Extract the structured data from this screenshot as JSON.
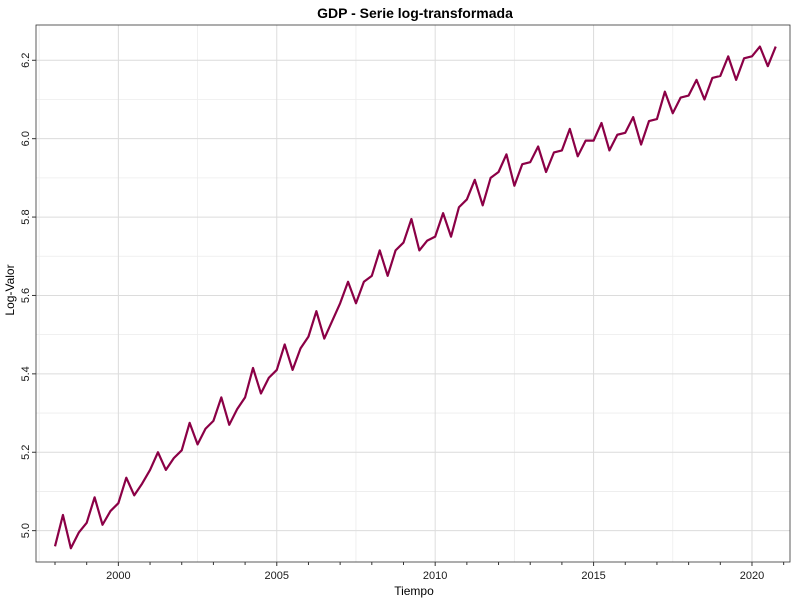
{
  "chart_data": {
    "type": "line",
    "title": "GDP - Serie log-transformada",
    "xlabel": "Tiempo",
    "ylabel": "Log-Valor",
    "xlim": [
      1997.4,
      2021.2
    ],
    "ylim": [
      4.92,
      6.29
    ],
    "x_ticks": [
      2000,
      2005,
      2010,
      2015,
      2020
    ],
    "x_tick_labels": [
      "2000",
      "2005",
      "2010",
      "2015",
      "2020"
    ],
    "y_ticks": [
      5.0,
      5.2,
      5.4,
      5.6,
      5.8,
      6.0,
      6.2
    ],
    "y_tick_labels": [
      "5.0",
      "5.2",
      "5.4",
      "5.6",
      "5.8",
      "6.0",
      "6.2"
    ],
    "grid": true,
    "legend": "none",
    "line_color": "#8B0046",
    "series": [
      {
        "x": [
          1998.0,
          1998.25,
          1998.5,
          1998.75,
          1999.0,
          1999.25,
          1999.5,
          1999.75,
          2000.0,
          2000.25,
          2000.5,
          2000.75,
          2001.0,
          2001.25,
          2001.5,
          2001.75,
          2002.0,
          2002.25,
          2002.5,
          2002.75,
          2003.0,
          2003.25,
          2003.5,
          2003.75,
          2004.0,
          2004.25,
          2004.5,
          2004.75,
          2005.0,
          2005.25,
          2005.5,
          2005.75,
          2006.0,
          2006.25,
          2006.5,
          2006.75,
          2007.0,
          2007.25,
          2007.5,
          2007.75,
          2008.0,
          2008.25,
          2008.5,
          2008.75,
          2009.0,
          2009.25,
          2009.5,
          2009.75,
          2010.0,
          2010.25,
          2010.5,
          2010.75,
          2011.0,
          2011.25,
          2011.5,
          2011.75,
          2012.0,
          2012.25,
          2012.5,
          2012.75,
          2013.0,
          2013.25,
          2013.5,
          2013.75,
          2014.0,
          2014.25,
          2014.5,
          2014.75,
          2015.0,
          2015.25,
          2015.5,
          2015.75,
          2016.0,
          2016.25,
          2016.5,
          2016.75,
          2017.0,
          2017.25,
          2017.5,
          2017.75,
          2018.0,
          2018.25,
          2018.5,
          2018.75,
          2019.0,
          2019.25,
          2019.5,
          2019.75,
          2020.0,
          2020.25,
          2020.5,
          2020.75
        ],
        "values": [
          4.96,
          5.04,
          4.955,
          4.995,
          5.02,
          5.085,
          5.015,
          5.05,
          5.07,
          5.135,
          5.09,
          5.12,
          5.155,
          5.2,
          5.155,
          5.185,
          5.205,
          5.275,
          5.22,
          5.26,
          5.28,
          5.34,
          5.27,
          5.31,
          5.34,
          5.415,
          5.35,
          5.39,
          5.41,
          5.475,
          5.41,
          5.465,
          5.495,
          5.56,
          5.49,
          5.535,
          5.58,
          5.635,
          5.58,
          5.635,
          5.65,
          5.715,
          5.65,
          5.715,
          5.735,
          5.795,
          5.715,
          5.74,
          5.75,
          5.81,
          5.75,
          5.825,
          5.845,
          5.895,
          5.83,
          5.9,
          5.915,
          5.96,
          5.88,
          5.935,
          5.94,
          5.98,
          5.915,
          5.965,
          5.97,
          6.025,
          5.955,
          5.995,
          5.995,
          6.04,
          5.97,
          6.01,
          6.015,
          6.055,
          5.985,
          6.045,
          6.05,
          6.12,
          6.065,
          6.105,
          6.11,
          6.15,
          6.1,
          6.155,
          6.16,
          6.21,
          6.15,
          6.205,
          6.21,
          6.235,
          6.185,
          6.235
        ]
      }
    ]
  }
}
